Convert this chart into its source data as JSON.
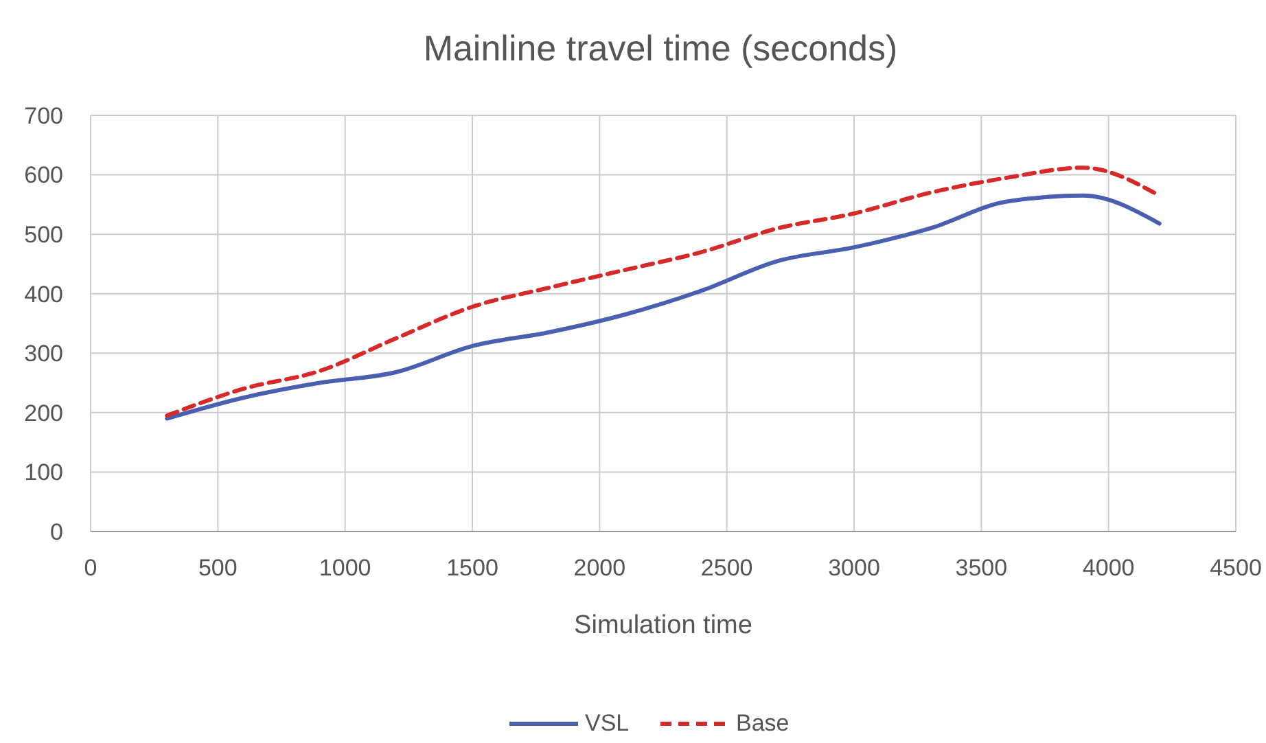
{
  "chart_data": {
    "type": "line",
    "title": "Mainline travel time (seconds)",
    "xlabel": "Simulation time",
    "x": [
      300,
      600,
      900,
      1200,
      1500,
      1800,
      2100,
      2400,
      2700,
      3000,
      3300,
      3600,
      3900,
      4200
    ],
    "series": [
      {
        "name": "VSL",
        "color": "#4a5fb0",
        "line_style": "solid",
        "values": [
          190,
          225,
          250,
          268,
          312,
          335,
          365,
          405,
          455,
          478,
          510,
          555,
          565,
          518
        ]
      },
      {
        "name": "Base",
        "color": "#d42a2a",
        "line_style": "dashed",
        "values": [
          195,
          240,
          270,
          325,
          378,
          410,
          440,
          470,
          510,
          535,
          570,
          595,
          612,
          565
        ]
      }
    ],
    "xlim": [
      0,
      4500
    ],
    "xticks": [
      0,
      500,
      1000,
      1500,
      2000,
      2500,
      3000,
      3500,
      4000,
      4500
    ],
    "ylim": [
      0,
      700
    ],
    "yticks": [
      0,
      100,
      200,
      300,
      400,
      500,
      600,
      700
    ],
    "grid": true,
    "legend": "bottom"
  }
}
